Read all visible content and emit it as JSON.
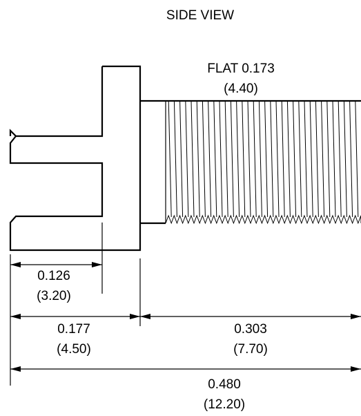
{
  "title": "SIDE VIEW",
  "callout": {
    "line1": "FLAT 0.173",
    "line2": "(4.40)"
  },
  "dimensions": {
    "slot_depth": {
      "inch": "0.126",
      "mm": "(3.20)"
    },
    "head_length": {
      "inch": "0.177",
      "mm": "(4.50)"
    },
    "thread_length": {
      "inch": "0.303",
      "mm": "(7.70)"
    },
    "overall_length": {
      "inch": "0.480",
      "mm": "(12.20)"
    }
  }
}
